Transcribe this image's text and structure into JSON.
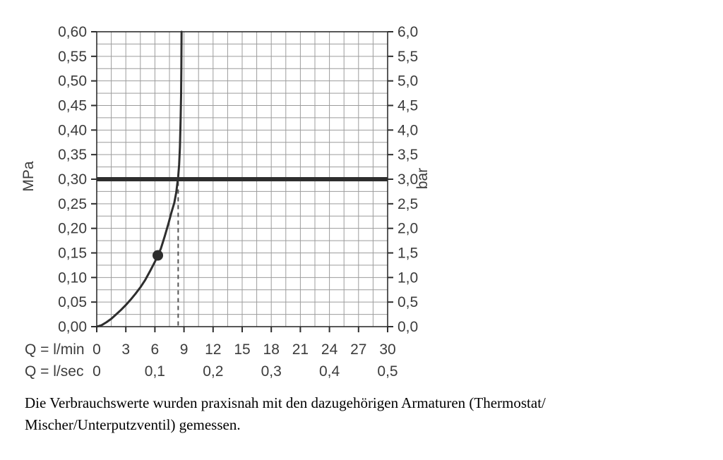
{
  "chart_data": {
    "type": "line",
    "title": "",
    "x_axis": {
      "label_lmin": "Q = l/min",
      "label_lsec": "Q = l/sec",
      "range_lmin": [
        0,
        30
      ],
      "ticks_lmin": [
        "0",
        "3",
        "6",
        "9",
        "12",
        "15",
        "18",
        "21",
        "24",
        "27",
        "30"
      ],
      "ticks_lsec": [
        "0",
        "0,1",
        "0,2",
        "0,3",
        "0,4",
        "0,5"
      ],
      "grid_step_lmin": 1.5
    },
    "y_axis_left": {
      "label": "MPa",
      "range": [
        0,
        0.6
      ],
      "ticks": [
        "0,00",
        "0,05",
        "0,10",
        "0,15",
        "0,20",
        "0,25",
        "0,30",
        "0,35",
        "0,40",
        "0,45",
        "0,50",
        "0,55",
        "0,60"
      ],
      "grid_step": 0.025
    },
    "y_axis_right": {
      "label": "bar",
      "range": [
        0,
        6
      ],
      "ticks": [
        "0,0",
        "0,5",
        "1,0",
        "1,5",
        "2,0",
        "2,5",
        "3,0",
        "3,5",
        "4,0",
        "4,5",
        "5,0",
        "5,5",
        "6,0"
      ]
    },
    "series": [
      {
        "name": "flow-pressure-curve",
        "points_lmin_mpa": [
          [
            0,
            0
          ],
          [
            0.5,
            0.003
          ],
          [
            1,
            0.009
          ],
          [
            1.5,
            0.016
          ],
          [
            2,
            0.025
          ],
          [
            2.5,
            0.034
          ],
          [
            3,
            0.044
          ],
          [
            3.5,
            0.055
          ],
          [
            4,
            0.067
          ],
          [
            4.5,
            0.08
          ],
          [
            5,
            0.095
          ],
          [
            5.5,
            0.113
          ],
          [
            6,
            0.132
          ],
          [
            6.3,
            0.145
          ],
          [
            6.6,
            0.158
          ],
          [
            7,
            0.183
          ],
          [
            7.4,
            0.21
          ],
          [
            7.7,
            0.232
          ],
          [
            8,
            0.252
          ],
          [
            8.2,
            0.273
          ],
          [
            8.4,
            0.305
          ],
          [
            8.5,
            0.33
          ],
          [
            8.58,
            0.365
          ],
          [
            8.65,
            0.42
          ],
          [
            8.7,
            0.47
          ],
          [
            8.73,
            0.53
          ],
          [
            8.75,
            0.6
          ]
        ]
      }
    ],
    "reference_line_mpa": 0.3,
    "reference_line_bar": 3.0,
    "marker_point_lmin_mpa": [
      6.3,
      0.145
    ],
    "dashed_guide_lmin": 8.4,
    "dashed_guide_top_mpa": 0.295,
    "grid_on": true,
    "legend_position": "none",
    "colors": {
      "curve": "#2e2e2e",
      "grid": "#9c9c9c",
      "axis": "#2e2e2e",
      "text": "#3c3c3c",
      "reference": "#2e2e2e",
      "dashed": "#555555"
    }
  },
  "caption": {
    "line1": "Die Verbrauchswerte wurden praxisnah mit den dazugehörigen Armaturen (Thermostat/",
    "line2": "Mischer/Unterputzventil) gemessen."
  }
}
